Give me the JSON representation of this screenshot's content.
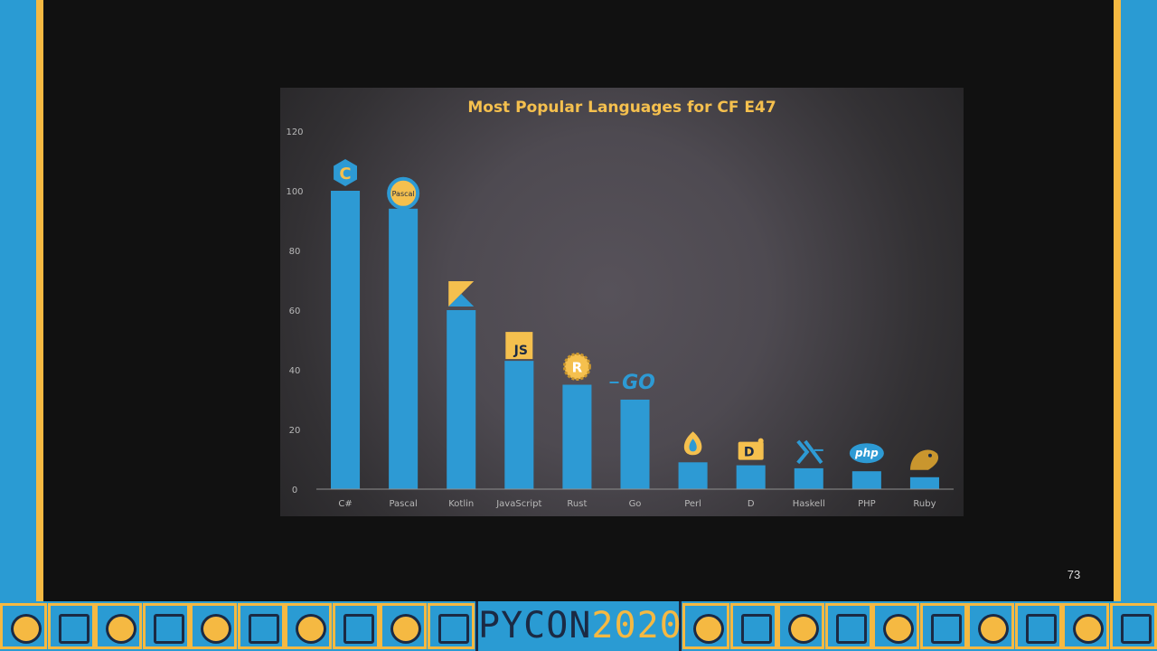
{
  "slide": {
    "page_number": "73"
  },
  "footer": {
    "logo_word": "PYCON",
    "logo_year": "2020"
  },
  "colors": {
    "bar": "#2d9ad4",
    "title": "#f5c04e",
    "slide_bg": "#111111",
    "frame": "#2a9bd3",
    "accent": "#f5b942"
  },
  "chart_data": {
    "type": "bar",
    "title": "Most Popular Languages for CF E47",
    "xlabel": "",
    "ylabel": "",
    "ylim": [
      0,
      120
    ],
    "yticks": [
      0,
      20,
      40,
      60,
      80,
      100,
      120
    ],
    "categories": [
      "C#",
      "Pascal",
      "Kotlin",
      "JavaScript",
      "Rust",
      "Go",
      "Perl",
      "D",
      "Haskell",
      "PHP",
      "Ruby"
    ],
    "values": [
      100,
      94,
      60,
      43,
      35,
      30,
      9,
      8,
      7,
      6,
      4
    ],
    "logos": [
      {
        "icon": "csharp-logo-icon",
        "label": "C"
      },
      {
        "icon": "pascal-logo-icon",
        "label": "Pascal"
      },
      {
        "icon": "kotlin-logo-icon",
        "label": ""
      },
      {
        "icon": "javascript-logo-icon",
        "label": "JS"
      },
      {
        "icon": "rust-logo-icon",
        "label": "R"
      },
      {
        "icon": "go-logo-icon",
        "label": "GO"
      },
      {
        "icon": "perl-logo-icon",
        "label": ""
      },
      {
        "icon": "d-logo-icon",
        "label": "D"
      },
      {
        "icon": "haskell-logo-icon",
        "label": ""
      },
      {
        "icon": "php-logo-icon",
        "label": "php"
      },
      {
        "icon": "ruby-logo-icon",
        "label": ""
      }
    ],
    "grid": false,
    "legend": "none"
  }
}
